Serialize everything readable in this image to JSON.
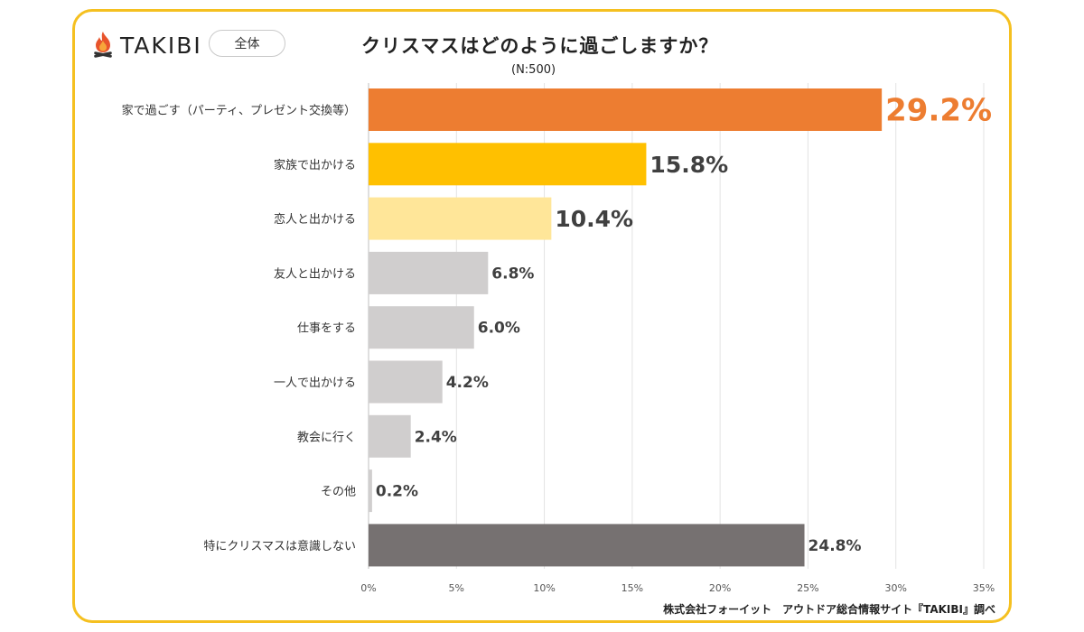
{
  "header": {
    "brand": "TAKIBI",
    "scope_label": "全体",
    "logo_icon": "campfire-icon",
    "title": "クリスマスはどのように過ごしますか？",
    "subtitle": "(N:500)"
  },
  "footer": {
    "credit": "株式会社フォーイット　アウトドア総合情報サイト『TAKIBI』調べ"
  },
  "colors": {
    "frame": "#f5c020",
    "highlight_1": "#ed7d31",
    "highlight_2": "#ffc000",
    "highlight_3": "#ffe699",
    "neutral": "#d0cece",
    "other": "#767171"
  },
  "chart_data": {
    "type": "bar",
    "orientation": "horizontal",
    "categories": [
      "家で過ごす（パーティ、プレゼント交換等）",
      "家族で出かける",
      "恋人と出かける",
      "友人と出かける",
      "仕事をする",
      "一人で出かける",
      "教会に行く",
      "その他",
      "特にクリスマスは意識しない"
    ],
    "values": [
      29.2,
      15.8,
      10.4,
      6.8,
      6.0,
      4.2,
      2.4,
      0.2,
      24.8
    ],
    "value_labels": [
      "29.2%",
      "15.8%",
      "10.4%",
      "6.8%",
      "6.0%",
      "4.2%",
      "2.4%",
      "0.2%",
      "24.8%"
    ],
    "bar_colors": [
      "#ed7d31",
      "#ffc000",
      "#ffe699",
      "#d0cece",
      "#d0cece",
      "#d0cece",
      "#d0cece",
      "#d0cece",
      "#767171"
    ],
    "label_colors": [
      "#ed7d31",
      "#404040",
      "#404040",
      "#404040",
      "#404040",
      "#404040",
      "#404040",
      "#404040",
      "#404040"
    ],
    "xlim": [
      0,
      35
    ],
    "x_ticks": [
      0,
      5,
      10,
      15,
      20,
      25,
      30,
      35
    ],
    "x_tick_labels": [
      "0%",
      "5%",
      "10%",
      "15%",
      "20%",
      "25%",
      "30%",
      "35%"
    ],
    "grid": true,
    "legend": false
  }
}
